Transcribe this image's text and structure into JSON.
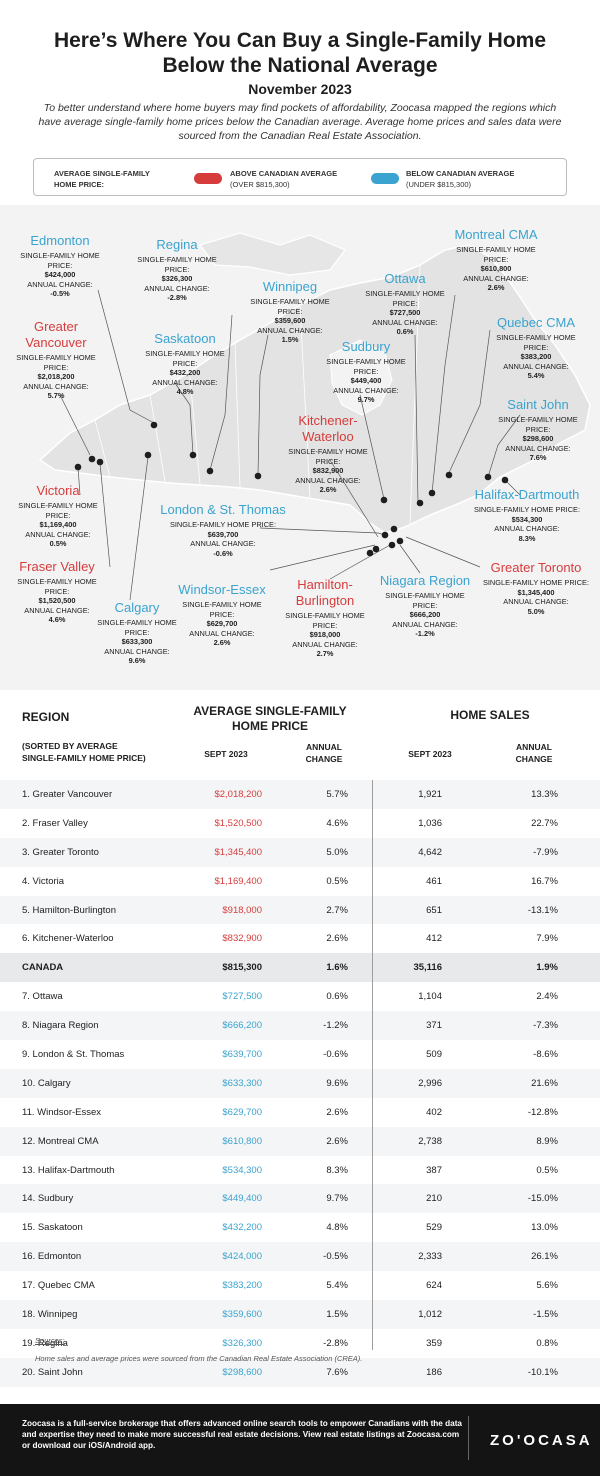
{
  "header": {
    "title_line1": "Here’s Where You Can Buy a Single-Family Home",
    "title_line2": "Below the National Average",
    "date": "November 2023",
    "intro": "To better understand where home buyers may find pockets of affordability, Zoocasa mapped the regions which have average single-family home prices below the Canadian average. Average home prices and sales data were sourced from the Canadian Real Estate Association."
  },
  "legend": {
    "label_line1": "AVERAGE SINGLE-FAMILY",
    "label_line2": "HOME PRICE:",
    "above_line1": "ABOVE CANADIAN AVERAGE",
    "above_line2": "(OVER $815,300)",
    "below_line1": "BELOW CANADIAN AVERAGE",
    "below_line2": "(UNDER $815,300)",
    "above_color": "#d63c3c",
    "below_color": "#3aa3cf"
  },
  "map": {
    "labels": {
      "price_label": "SINGLE-FAMILY HOME PRICE:",
      "change_label": "ANNUAL CHANGE:"
    },
    "callouts": [
      {
        "city": "Edmonton",
        "color": "blue",
        "price": "$424,000",
        "change": "-0.5%"
      },
      {
        "city": "Regina",
        "color": "blue",
        "price": "$326,300",
        "change": "-2.8%"
      },
      {
        "city": "Winnipeg",
        "color": "blue",
        "price": "$359,600",
        "change": "1.5%"
      },
      {
        "city": "Ottawa",
        "color": "blue",
        "price": "$727,500",
        "change": "0.6%"
      },
      {
        "city": "Montreal CMA",
        "color": "blue",
        "price": "$610,800",
        "change": "2.6%"
      },
      {
        "city": "Greater Vancouver",
        "color": "red",
        "price": "$2,018,200",
        "change": "5.7%"
      },
      {
        "city": "Saskatoon",
        "color": "blue",
        "price": "$432,200",
        "change": "4.8%"
      },
      {
        "city": "Sudbury",
        "color": "blue",
        "price": "$449,400",
        "change": "9.7%"
      },
      {
        "city": "Quebec CMA",
        "color": "blue",
        "price": "$383,200",
        "change": "5.4%"
      },
      {
        "city": "Saint John",
        "color": "blue",
        "price": "$298,600",
        "change": "7.6%"
      },
      {
        "city": "Kitchener-Waterloo",
        "color": "red",
        "price": "$832,900",
        "change": "2.6%"
      },
      {
        "city": "Victoria",
        "color": "red",
        "price": "$1,169,400",
        "change": "0.5%"
      },
      {
        "city": "London & St. Thomas",
        "color": "blue",
        "price": "$639,700",
        "change": "-0.6%"
      },
      {
        "city": "Halifax-Dartmouth",
        "color": "blue",
        "price": "$534,300",
        "change": "8.3%"
      },
      {
        "city": "Fraser Valley",
        "color": "red",
        "price": "$1,520,500",
        "change": "4.6%"
      },
      {
        "city": "Windsor-Essex",
        "color": "blue",
        "price": "$629,700",
        "change": "2.6%"
      },
      {
        "city": "Hamilton-Burlington",
        "color": "red",
        "price": "$918,000",
        "change": "2.7%"
      },
      {
        "city": "Niagara Region",
        "color": "blue",
        "price": "$666,200",
        "change": "-1.2%"
      },
      {
        "city": "Greater Toronto",
        "color": "red",
        "price": "$1,345,400",
        "change": "5.0%"
      },
      {
        "city": "Calgary",
        "color": "blue",
        "price": "$633,300",
        "change": "9.6%"
      }
    ]
  },
  "table": {
    "region_header": "REGION",
    "region_sub_line1": "(SORTED BY AVERAGE",
    "region_sub_line2": "SINGLE-FAMILY HOME PRICE)",
    "price_header_line1": "AVERAGE SINGLE-FAMILY",
    "price_header_line2": "HOME PRICE",
    "sales_header": "HOME SALES",
    "sept_label": "SEPT 2023",
    "annual_line1": "ANNUAL",
    "annual_line2": "CHANGE",
    "rows": [
      {
        "region": "1. Greater Vancouver",
        "price": "$2,018,200",
        "price_change": "5.7%",
        "sales": "1,921",
        "sales_change": "13.3%",
        "tone": "red"
      },
      {
        "region": "2. Fraser Valley",
        "price": "$1,520,500",
        "price_change": "4.6%",
        "sales": "1,036",
        "sales_change": "22.7%",
        "tone": "red"
      },
      {
        "region": "3. Greater Toronto",
        "price": "$1,345,400",
        "price_change": "5.0%",
        "sales": "4,642",
        "sales_change": "-7.9%",
        "tone": "red"
      },
      {
        "region": "4. Victoria",
        "price": "$1,169,400",
        "price_change": "0.5%",
        "sales": "461",
        "sales_change": "16.7%",
        "tone": "red"
      },
      {
        "region": "5. Hamilton-Burlington",
        "price": "$918,000",
        "price_change": "2.7%",
        "sales": "651",
        "sales_change": "-13.1%",
        "tone": "red"
      },
      {
        "region": "6. Kitchener-Waterloo",
        "price": "$832,900",
        "price_change": "2.6%",
        "sales": "412",
        "sales_change": "7.9%",
        "tone": "red"
      },
      {
        "region": "CANADA",
        "price": "$815,300",
        "price_change": "1.6%",
        "sales": "35,116",
        "sales_change": "1.9%",
        "tone": "black"
      },
      {
        "region": "7. Ottawa",
        "price": "$727,500",
        "price_change": "0.6%",
        "sales": "1,104",
        "sales_change": "2.4%",
        "tone": "blue"
      },
      {
        "region": "8. Niagara Region",
        "price": "$666,200",
        "price_change": "-1.2%",
        "sales": "371",
        "sales_change": "-7.3%",
        "tone": "blue"
      },
      {
        "region": "9. London & St. Thomas",
        "price": "$639,700",
        "price_change": "-0.6%",
        "sales": "509",
        "sales_change": "-8.6%",
        "tone": "blue"
      },
      {
        "region": "10. Calgary",
        "price": "$633,300",
        "price_change": "9.6%",
        "sales": "2,996",
        "sales_change": "21.6%",
        "tone": "blue"
      },
      {
        "region": "11. Windsor-Essex",
        "price": "$629,700",
        "price_change": "2.6%",
        "sales": "402",
        "sales_change": "-12.8%",
        "tone": "blue"
      },
      {
        "region": "12. Montreal CMA",
        "price": "$610,800",
        "price_change": "2.6%",
        "sales": "2,738",
        "sales_change": "8.9%",
        "tone": "blue"
      },
      {
        "region": "13. Halifax-Dartmouth",
        "price": "$534,300",
        "price_change": "8.3%",
        "sales": "387",
        "sales_change": "0.5%",
        "tone": "blue"
      },
      {
        "region": "14. Sudbury",
        "price": "$449,400",
        "price_change": "9.7%",
        "sales": "210",
        "sales_change": "-15.0%",
        "tone": "blue"
      },
      {
        "region": "15. Saskatoon",
        "price": "$432,200",
        "price_change": "4.8%",
        "sales": "529",
        "sales_change": "13.0%",
        "tone": "blue"
      },
      {
        "region": "16. Edmonton",
        "price": "$424,000",
        "price_change": "-0.5%",
        "sales": "2,333",
        "sales_change": "26.1%",
        "tone": "blue"
      },
      {
        "region": "17. Quebec CMA",
        "price": "$383,200",
        "price_change": "5.4%",
        "sales": "624",
        "sales_change": "5.6%",
        "tone": "blue"
      },
      {
        "region": "18. Winnipeg",
        "price": "$359,600",
        "price_change": "1.5%",
        "sales": "1,012",
        "sales_change": "-1.5%",
        "tone": "blue"
      },
      {
        "region": "19. Regina",
        "price": "$326,300",
        "price_change": "-2.8%",
        "sales": "359",
        "sales_change": "0.8%",
        "tone": "blue"
      },
      {
        "region": "20. Saint John",
        "price": "$298,600",
        "price_change": "7.6%",
        "sales": "186",
        "sales_change": "-10.1%",
        "tone": "blue"
      }
    ]
  },
  "sources": {
    "title": "Sources:",
    "text": "Home sales and average prices were sourced from the Canadian Real Estate Association (CREA)."
  },
  "footer": {
    "text": "Zoocasa is a full-service brokerage that offers advanced online search tools to empower Canadians with the data and expertise they need to make more successful real estate decisions. View real estate listings at Zoocasa.com or download our iOS/Android app.",
    "logo": "ZO'OCASA"
  }
}
